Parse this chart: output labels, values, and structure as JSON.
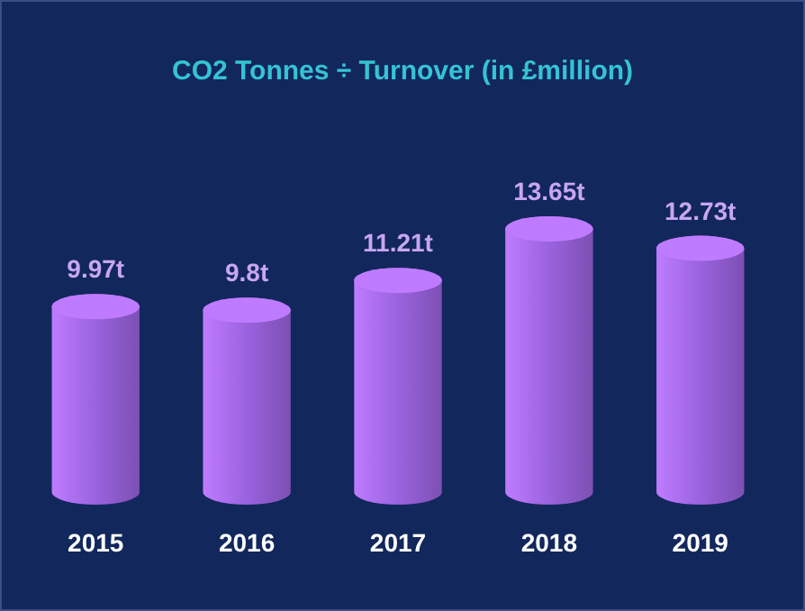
{
  "chart_data": {
    "type": "bar",
    "title": "CO2 Tonnes ÷ Turnover (in £million)",
    "categories": [
      "2015",
      "2016",
      "2017",
      "2018",
      "2019"
    ],
    "values": [
      9.97,
      9.8,
      11.21,
      13.65,
      12.73
    ],
    "value_labels": [
      "9.97t",
      "9.8t",
      "11.21t",
      "13.65t",
      "12.73t"
    ],
    "color": "#9a63de"
  }
}
